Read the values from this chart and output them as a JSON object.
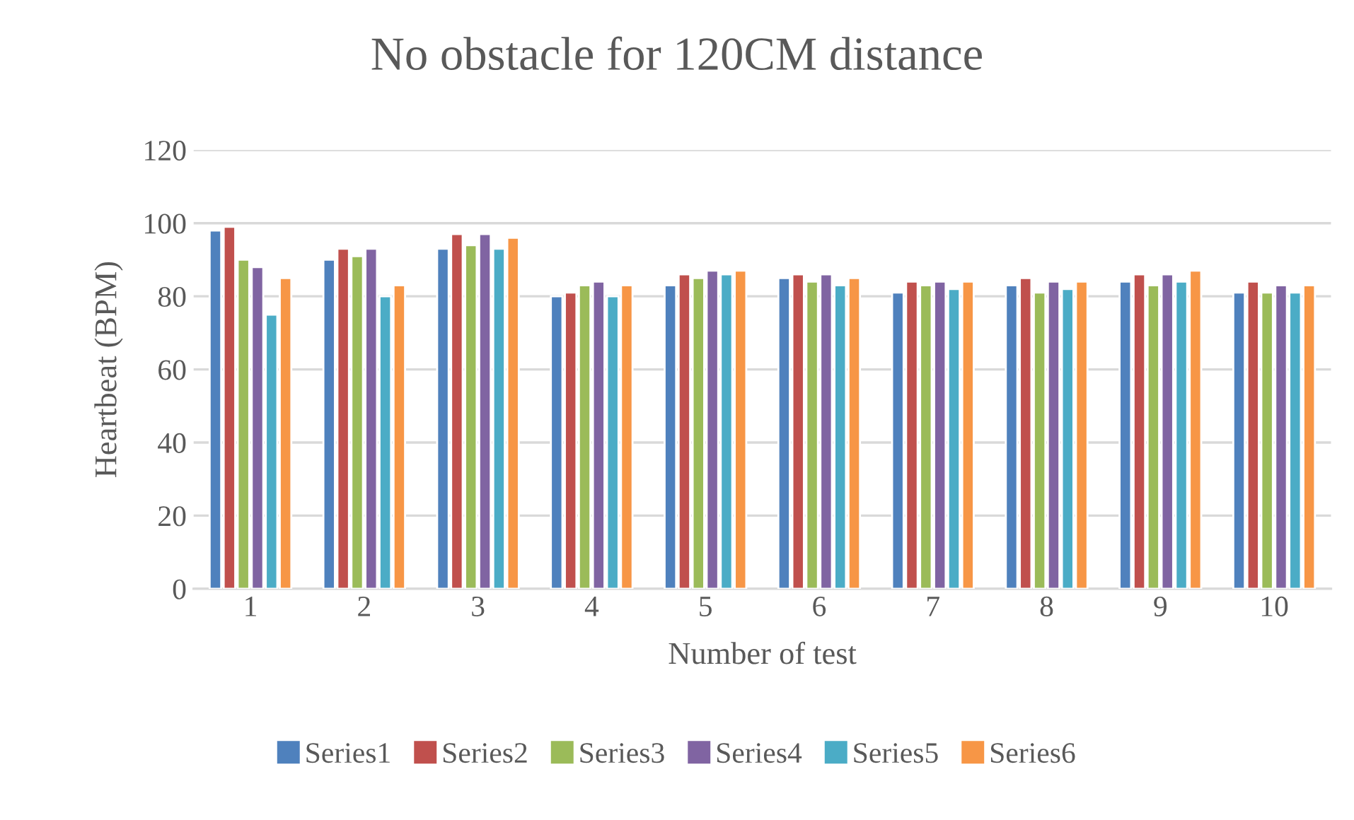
{
  "chart_data": {
    "type": "bar",
    "title": "No obstacle for 120CM distance",
    "xlabel": "Number of test",
    "ylabel": "Heartbeat (BPM)",
    "categories": [
      "1",
      "2",
      "3",
      "4",
      "5",
      "6",
      "7",
      "8",
      "9",
      "10"
    ],
    "series": [
      {
        "name": "Series1",
        "color": "#4f81bd",
        "values": [
          98,
          90,
          93,
          80,
          83,
          85,
          81,
          83,
          84,
          81
        ]
      },
      {
        "name": "Series2",
        "color": "#c0504d",
        "values": [
          99,
          93,
          97,
          81,
          86,
          86,
          84,
          85,
          86,
          84
        ]
      },
      {
        "name": "Series3",
        "color": "#9bbb59",
        "values": [
          90,
          91,
          94,
          83,
          85,
          84,
          83,
          81,
          83,
          81
        ]
      },
      {
        "name": "Series4",
        "color": "#8064a2",
        "values": [
          88,
          93,
          97,
          84,
          87,
          86,
          84,
          84,
          86,
          83
        ]
      },
      {
        "name": "Series5",
        "color": "#4bacc6",
        "values": [
          75,
          80,
          93,
          80,
          86,
          83,
          82,
          82,
          84,
          81
        ]
      },
      {
        "name": "Series6",
        "color": "#f79646",
        "values": [
          85,
          83,
          96,
          83,
          87,
          85,
          84,
          84,
          87,
          83
        ]
      }
    ],
    "ylim": [
      0,
      120
    ],
    "yticks": [
      0,
      20,
      40,
      60,
      80,
      100,
      120
    ],
    "grid": "y",
    "legend": "bottom"
  }
}
